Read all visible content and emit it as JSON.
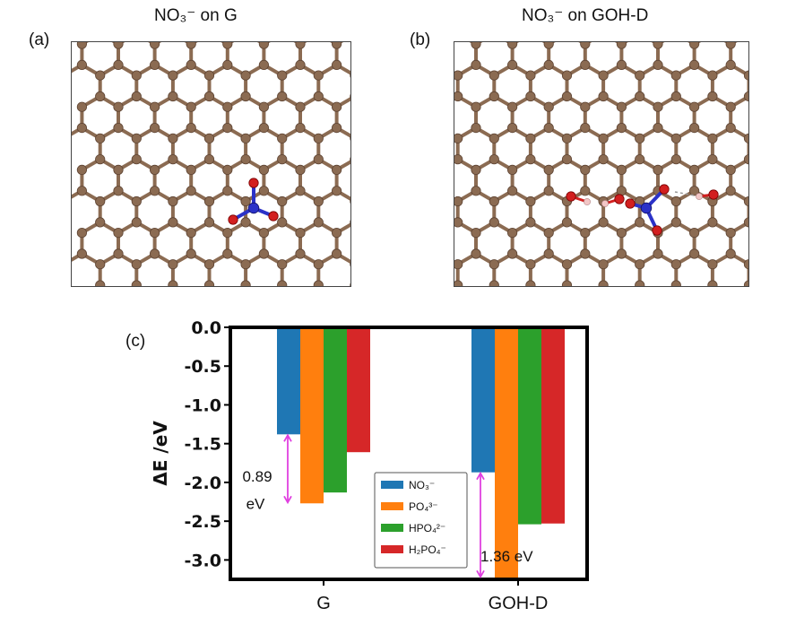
{
  "panels": {
    "a": {
      "letter": "(a)",
      "title": "NO₃⁻ on G"
    },
    "b": {
      "letter": "(b)",
      "title": "NO₃⁻ on GOH-D"
    },
    "c": {
      "letter": "(c)"
    }
  },
  "colors": {
    "carbon": "#8b6b52",
    "oxygen": "#d21f1f",
    "nitrogen": "#2b32c8",
    "hydrogen": "#f2c6c6",
    "arrow": "#e040e0"
  },
  "chart_data": {
    "type": "bar",
    "categories": [
      "G",
      "GOH-D"
    ],
    "ylabel": "ΔE /eV",
    "ylim": [
      -3.25,
      0.0
    ],
    "yticks": [
      0.0,
      -0.5,
      -1.0,
      -1.5,
      -2.0,
      -2.5,
      -3.0
    ],
    "ytick_labels": [
      "0.0",
      "-0.5",
      "-1.0",
      "-1.5",
      "-2.0",
      "-2.5",
      "-3.0"
    ],
    "grid": false,
    "legend_position": "bottom-center",
    "series": [
      {
        "name": "NO₃⁻",
        "color": "#1f77b4",
        "values": [
          -1.38,
          -1.87
        ]
      },
      {
        "name": "PO₄³⁻",
        "color": "#ff7f0e",
        "values": [
          -2.27,
          -3.23
        ]
      },
      {
        "name": "HPO₄²⁻",
        "color": "#2ca02c",
        "values": [
          -2.13,
          -2.54
        ]
      },
      {
        "name": "H₂PO₄⁻",
        "color": "#d62728",
        "values": [
          -1.61,
          -2.53
        ]
      }
    ],
    "annotations": [
      {
        "category": "G",
        "from": -1.38,
        "to": -2.27,
        "text_line1": "0.89",
        "text_line2": "eV"
      },
      {
        "category": "GOH-D",
        "from": -1.87,
        "to": -3.23,
        "text_line1": "1.36 eV"
      }
    ]
  }
}
